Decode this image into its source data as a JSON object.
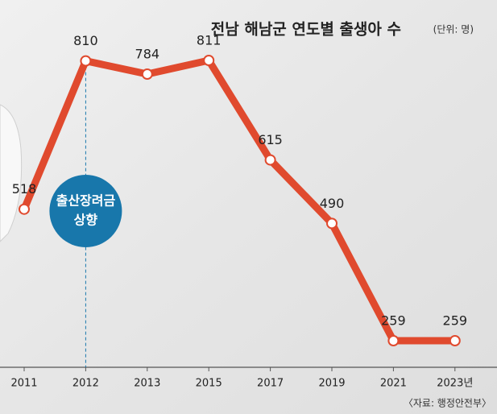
{
  "chart_data": {
    "type": "line",
    "title": "전남 해남군 연도별 출생아 수",
    "unit": "(단위: 명)",
    "categories": [
      "2011",
      "2012",
      "2013",
      "2015",
      "2017",
      "2019",
      "2021",
      "2023년"
    ],
    "values": [
      518,
      810,
      784,
      811,
      615,
      490,
      259,
      259
    ],
    "color": "#e04a2e",
    "annotation": [
      "출산장려금",
      "상향"
    ],
    "annotation_category": 1,
    "source": "〈자료: 행정안전부〉"
  }
}
